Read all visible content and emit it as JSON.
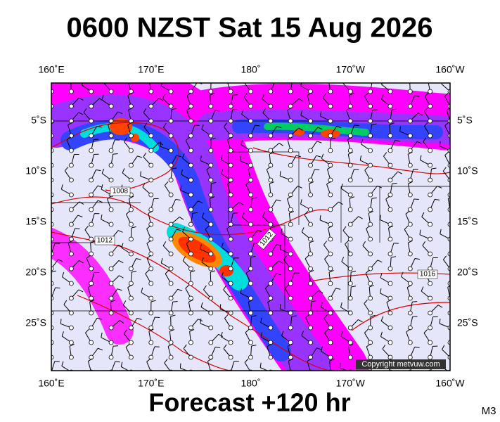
{
  "title": "0600 NZST Sat 15 Aug 2026",
  "top_labels": [
    "160˚E",
    "170˚E",
    "180˚",
    "170˚W",
    "160˚W"
  ],
  "bottom_labels": [
    "160˚E",
    "170˚E",
    "180˚",
    "170˚W",
    "160˚W"
  ],
  "left_labels": [
    "5˚S",
    "10˚S",
    "15˚S",
    "20˚S",
    "25˚S"
  ],
  "right_labels": [
    "5˚S",
    "10˚S",
    "15˚S",
    "20˚S",
    "25˚S"
  ],
  "isobar_labels": [
    1008,
    1012,
    1012,
    1016
  ],
  "copyright": "Copyright metvuw.com",
  "footer": "Forecast +120 hr",
  "code": "M3"
}
